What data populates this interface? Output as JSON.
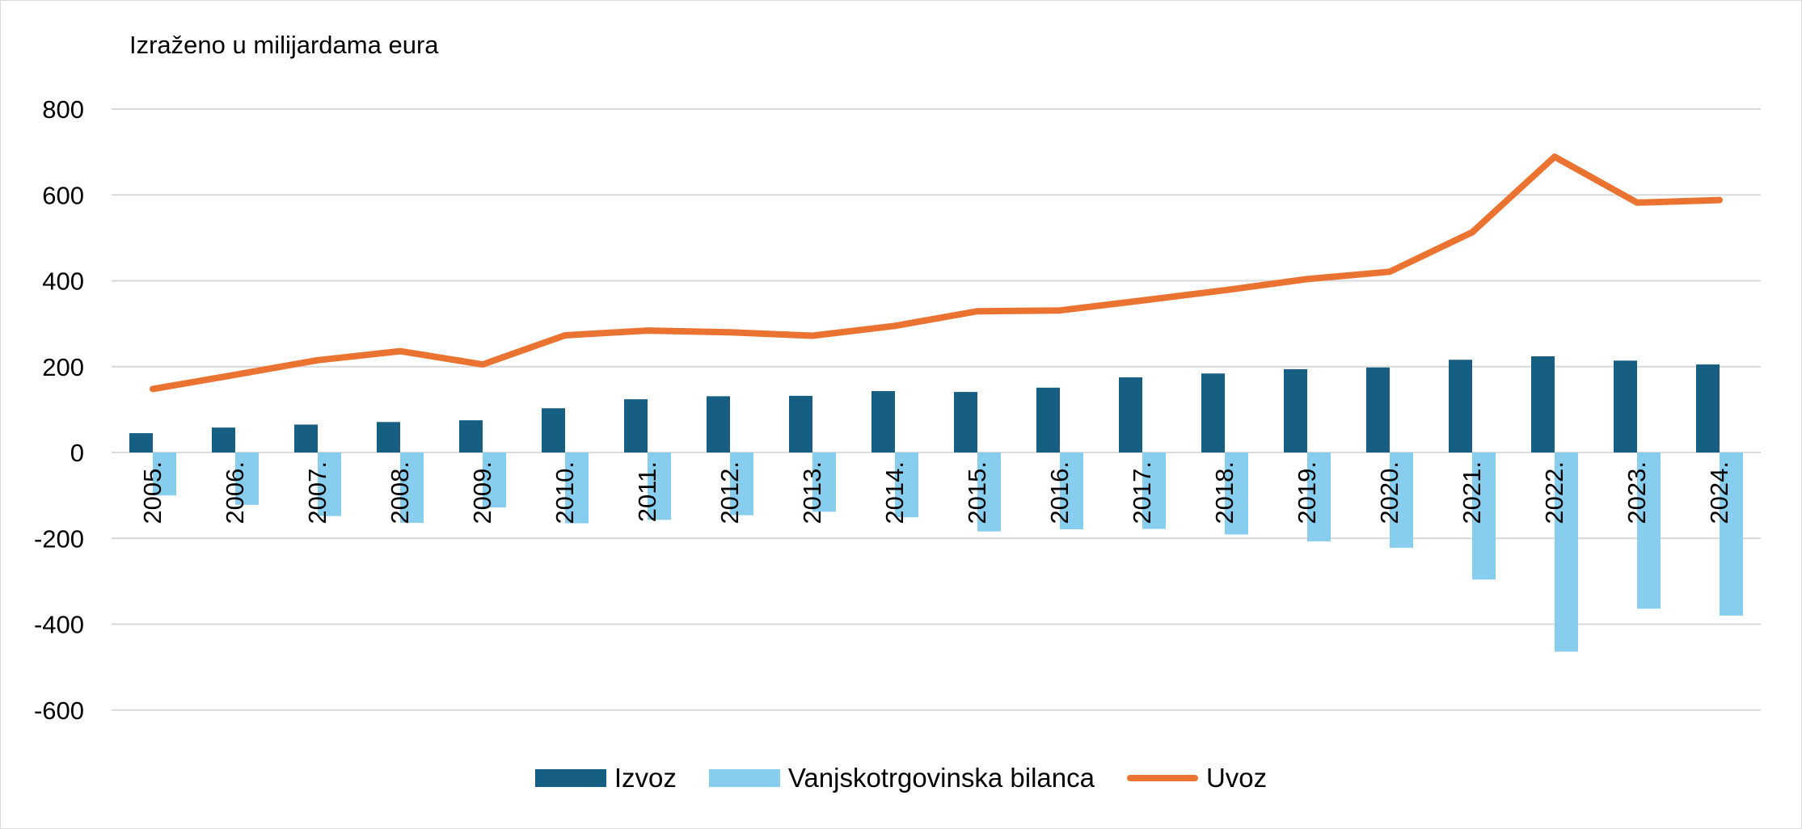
{
  "colors": {
    "izvoz": "#175f82",
    "bilanca": "#86cdee",
    "uvoz": "#eb7331",
    "grid": "#d9d9d9"
  },
  "chart_data": {
    "type": "bar",
    "ylabel": "Izraženo u milijardama eura",
    "ylim": [
      -600,
      800
    ],
    "yticks": [
      800,
      600,
      400,
      200,
      0,
      -200,
      -400,
      -600
    ],
    "ytick_labels": [
      "800",
      "600",
      "400",
      "200",
      "0",
      "-200",
      "-400",
      "-600"
    ],
    "grid": true,
    "legend_position": "bottom",
    "categories": [
      "2005.",
      "2006.",
      "2007.",
      "2008.",
      "2009.",
      "2010.",
      "2011.",
      "2012.",
      "2013.",
      "2014.",
      "2015.",
      "2016.",
      "2017.",
      "2018.",
      "2019.",
      "2020.",
      "2021.",
      "2022.",
      "2023.",
      "2024."
    ],
    "series": [
      {
        "name": "Izvoz",
        "type": "bar",
        "values": [
          45,
          58,
          65,
          71,
          75,
          103,
          124,
          131,
          132,
          143,
          141,
          151,
          175,
          184,
          194,
          198,
          216,
          224,
          214,
          205
        ]
      },
      {
        "name": "Vanjskotrgovinska bilanca",
        "type": "bar",
        "values": [
          -100,
          -122,
          -148,
          -164,
          -128,
          -165,
          -157,
          -146,
          -138,
          -151,
          -184,
          -179,
          -178,
          -191,
          -207,
          -222,
          -296,
          -464,
          -364,
          -380
        ]
      },
      {
        "name": "Uvoz",
        "type": "line",
        "values": [
          148,
          181,
          215,
          236,
          205,
          273,
          284,
          280,
          272,
          295,
          329,
          331,
          354,
          378,
          404,
          421,
          513,
          689,
          582,
          588
        ]
      }
    ]
  }
}
